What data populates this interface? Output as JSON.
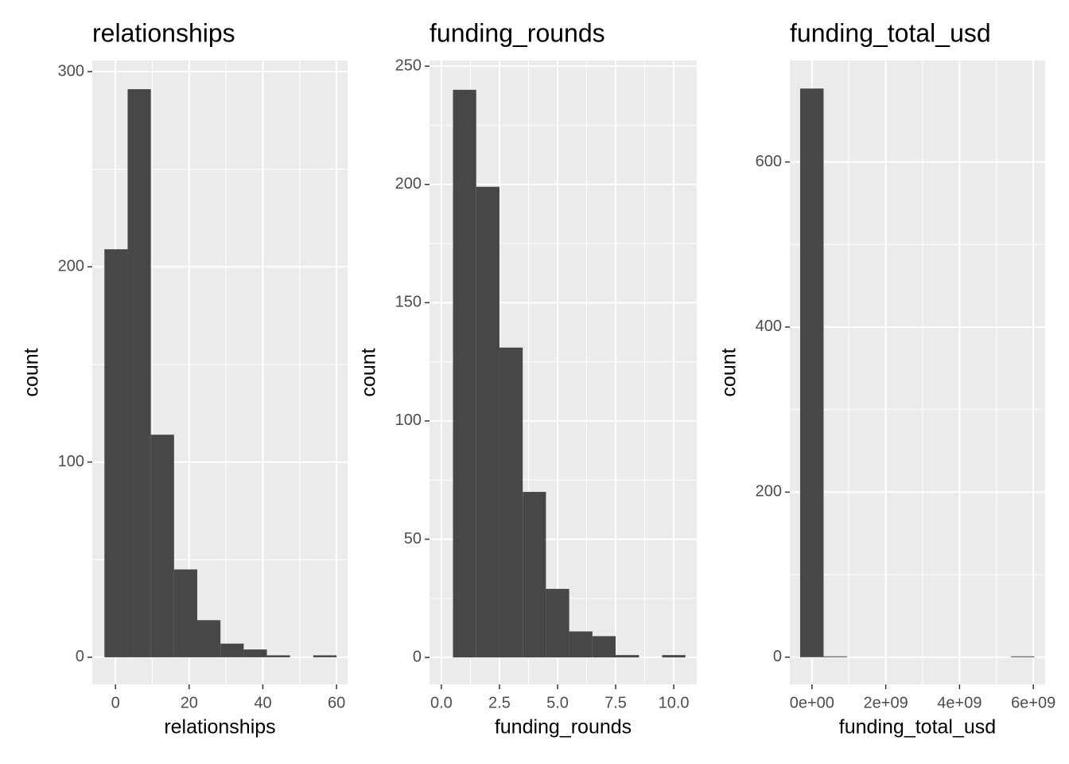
{
  "chart_data": [
    {
      "type": "histogram",
      "title": "relationships",
      "x_label": "relationships",
      "y_label": "count",
      "bins": [
        -3,
        3.3,
        9.6,
        15.9,
        22.2,
        28.5,
        34.8,
        41.1,
        47.4,
        53.7,
        60
      ],
      "values": [
        209,
        291,
        114,
        45,
        19,
        7,
        4,
        1,
        0,
        1
      ],
      "color": "#474747",
      "xlim": [
        -6.3,
        63
      ],
      "ylim": [
        -13.9,
        305.7
      ],
      "xticks": [
        0,
        20,
        40,
        60
      ],
      "yticks": [
        0,
        100,
        200,
        300
      ],
      "grid": true
    },
    {
      "type": "histogram",
      "title": "funding_rounds",
      "x_label": "funding_rounds",
      "y_label": "count",
      "bins": [
        0.5,
        1.5,
        2.5,
        3.5,
        4.5,
        5.5,
        6.5,
        7.5,
        8.5,
        9.5,
        10.5
      ],
      "values": [
        240,
        199,
        131,
        70,
        29,
        11,
        9,
        1,
        0,
        1
      ],
      "color": "#474747",
      "xlim": [
        -0.51,
        10.99
      ],
      "ylim": [
        -11.4,
        252.4
      ],
      "xticks": [
        {
          "value": 0,
          "label": "0.0"
        },
        {
          "value": 2.5,
          "label": "2.5"
        },
        {
          "value": 5,
          "label": "5.0"
        },
        {
          "value": 7.5,
          "label": "7.5"
        },
        {
          "value": 10,
          "label": "10.0"
        }
      ],
      "yticks": [
        0,
        50,
        100,
        150,
        200,
        250
      ],
      "grid": true
    },
    {
      "type": "histogram",
      "title": "funding_total_usd",
      "x_label": "funding_total_usd",
      "y_label": "count",
      "bins": [
        -320000000,
        315000000,
        950000000,
        1585000000,
        2220000000,
        2855000000,
        3490000000,
        4125000000,
        4760000000,
        5395000000,
        6030000000
      ],
      "values": [
        689,
        1,
        0,
        0,
        0,
        0,
        0,
        0,
        0,
        1
      ],
      "color": "#474747",
      "xlim": [
        -600000000,
        6320000000
      ],
      "ylim": [
        -33,
        723
      ],
      "xticks": [
        {
          "value": 0,
          "label": "0e+00"
        },
        {
          "value": 2000000000,
          "label": "2e+09"
        },
        {
          "value": 4000000000,
          "label": "4e+09"
        },
        {
          "value": 6000000000,
          "label": "6e+09"
        }
      ],
      "yticks": [
        0,
        200,
        400,
        600
      ],
      "grid": true
    }
  ]
}
